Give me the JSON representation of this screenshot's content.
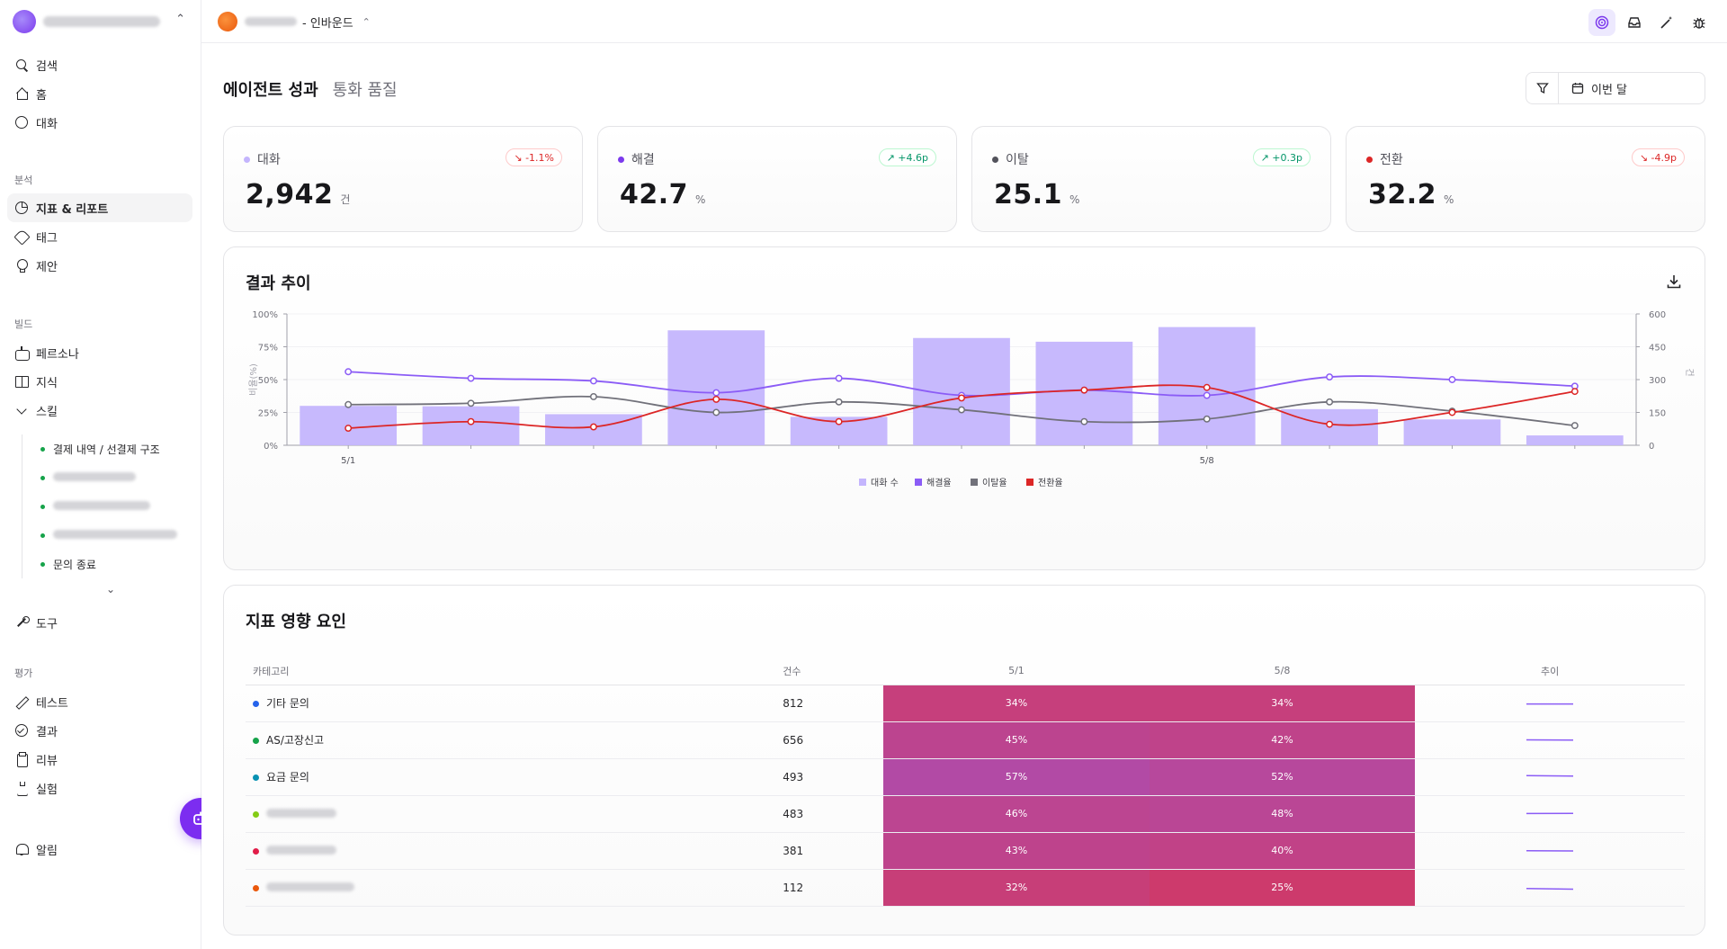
{
  "sidebar": {
    "items_top": [
      {
        "label": "검색",
        "icon": "search-icon"
      },
      {
        "label": "홈",
        "icon": "home-icon"
      },
      {
        "label": "대화",
        "icon": "chat-icon"
      }
    ],
    "section_analysis": "분석",
    "items_analysis": [
      {
        "label": "지표 & 리포트",
        "icon": "pie-chart-icon"
      },
      {
        "label": "태그",
        "icon": "tag-icon"
      },
      {
        "label": "제안",
        "icon": "lightbulb-icon"
      }
    ],
    "section_build": "빌드",
    "items_build": [
      {
        "label": "페르소나",
        "icon": "bot-icon"
      },
      {
        "label": "지식",
        "icon": "book-icon"
      },
      {
        "label": "스킬",
        "icon": "chevron-down-icon"
      }
    ],
    "skills": [
      "결제 내역 / 선결제 구조",
      "문의 종료"
    ],
    "item_tools": "도구",
    "section_eval": "평가",
    "items_eval": [
      {
        "label": "테스트",
        "icon": "pencil-icon"
      },
      {
        "label": "결과",
        "icon": "check-circle-icon"
      },
      {
        "label": "리뷰",
        "icon": "clipboard-icon"
      },
      {
        "label": "실험",
        "icon": "flask-icon"
      }
    ],
    "item_alerts": "알림"
  },
  "topbar": {
    "project_suffix": "- 인바운드"
  },
  "tabs": [
    "에이전트 성과",
    "통화 품질"
  ],
  "date_filter": "이번 달",
  "kpis": [
    {
      "label": "대화",
      "value": "2,942",
      "unit": "건",
      "delta": "-1.1%",
      "dir": "down",
      "color": "#c4b5fd"
    },
    {
      "label": "해결",
      "value": "42.7",
      "unit": "%",
      "delta": "+4.6p",
      "dir": "up",
      "color": "#7c3aed"
    },
    {
      "label": "이탈",
      "value": "25.1",
      "unit": "%",
      "delta": "+0.3p",
      "dir": "up",
      "color": "#52525b"
    },
    {
      "label": "전환",
      "value": "32.2",
      "unit": "%",
      "delta": "-4.9p",
      "dir": "down",
      "color": "#dc2626"
    }
  ],
  "chart_title": "결과 추이",
  "chart_data": {
    "type": "bar",
    "categories": [
      "5/1",
      "5/2",
      "5/3",
      "5/4",
      "5/5",
      "5/6",
      "5/7",
      "5/8",
      "5/9",
      "5/10",
      "5/11"
    ],
    "x_tick_labels": [
      "5/1",
      "5/8"
    ],
    "series": [
      {
        "name": "대화 수",
        "type": "bar",
        "axis": "right",
        "color": "#c4b5fd",
        "values": [
          180,
          178,
          142,
          525,
          130,
          490,
          473,
          540,
          165,
          118,
          45
        ]
      },
      {
        "name": "해결율",
        "type": "line",
        "axis": "left",
        "color": "#8b5cf6",
        "values": [
          56,
          51,
          49,
          40,
          51,
          38,
          42,
          38,
          52,
          50,
          45
        ]
      },
      {
        "name": "이탈율",
        "type": "line",
        "axis": "left",
        "color": "#71717a",
        "values": [
          31,
          32,
          37,
          25,
          33,
          27,
          18,
          20,
          33,
          26,
          15
        ]
      },
      {
        "name": "전환율",
        "type": "line",
        "axis": "left",
        "color": "#dc2626",
        "values": [
          13,
          18,
          14,
          35,
          18,
          36,
          42,
          44,
          16,
          25,
          41
        ]
      }
    ],
    "ylabel": "비율(%)",
    "ylabel_right": "건",
    "ylim": [
      0,
      100
    ],
    "ylim_right": [
      0,
      600
    ],
    "y_ticks": [
      "0%",
      "25%",
      "50%",
      "75%",
      "100%"
    ],
    "y_ticks_right": [
      "0",
      "150",
      "300",
      "450",
      "600"
    ],
    "legend_position": "bottom"
  },
  "factors": {
    "title": "지표 영향 요인",
    "headers": [
      "카테고리",
      "건수",
      "5/1",
      "5/8",
      "추이"
    ],
    "rows": [
      {
        "category": "기타 문의",
        "dot": "#2563eb",
        "count": "812",
        "v1": "34%",
        "v2": "34%",
        "trend": [
          34,
          34
        ]
      },
      {
        "category": "AS/고장신고",
        "dot": "#16a34a",
        "count": "656",
        "v1": "45%",
        "v2": "42%",
        "trend": [
          45,
          42
        ]
      },
      {
        "category": "요금 문의",
        "dot": "#0891b2",
        "count": "493",
        "v1": "57%",
        "v2": "52%",
        "trend": [
          57,
          52
        ]
      },
      {
        "category": "",
        "dot": "#84cc16",
        "count": "483",
        "v1": "46%",
        "v2": "48%",
        "trend": [
          46,
          48
        ]
      },
      {
        "category": "",
        "dot": "#e11d48",
        "count": "381",
        "v1": "43%",
        "v2": "40%",
        "trend": [
          43,
          40
        ]
      },
      {
        "category": "",
        "dot": "#ea580c",
        "count": "112",
        "v1": "32%",
        "v2": "25%",
        "trend": [
          32,
          25
        ]
      }
    ]
  }
}
